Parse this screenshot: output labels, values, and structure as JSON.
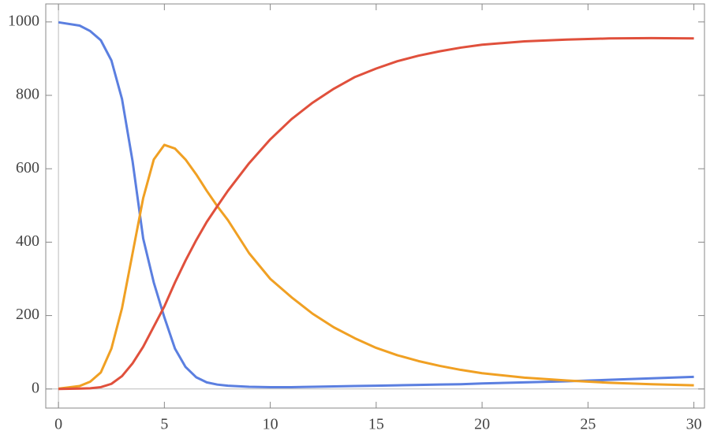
{
  "chart_data": {
    "type": "line",
    "x": [
      0,
      1,
      1.5,
      2,
      2.5,
      3,
      3.5,
      4,
      4.5,
      5,
      5.5,
      6,
      6.5,
      7,
      7.5,
      8,
      9,
      10,
      11,
      12,
      13,
      14,
      15,
      16,
      17,
      18,
      19,
      20,
      22,
      24,
      26,
      28,
      30
    ],
    "series": [
      {
        "color": "#5b7fe0",
        "values": [
          999,
          990,
          975,
          950,
          895,
          790,
          620,
          410,
          290,
          195,
          110,
          60,
          32,
          18,
          12,
          9,
          6,
          5,
          5,
          6,
          7,
          8,
          9,
          10,
          11,
          12,
          13,
          15,
          18,
          21,
          25,
          29,
          33
        ]
      },
      {
        "color": "#f0a023",
        "values": [
          1,
          8,
          20,
          45,
          110,
          220,
          370,
          520,
          625,
          665,
          655,
          625,
          585,
          540,
          498,
          460,
          370,
          300,
          250,
          205,
          168,
          138,
          112,
          92,
          76,
          63,
          52,
          43,
          31,
          23,
          17,
          13,
          10
        ]
      },
      {
        "color": "#e0503c",
        "values": [
          0,
          1,
          2,
          5,
          14,
          35,
          70,
          115,
          170,
          225,
          290,
          350,
          405,
          455,
          498,
          540,
          615,
          680,
          735,
          780,
          818,
          850,
          873,
          893,
          908,
          920,
          930,
          938,
          947,
          952,
          955,
          956,
          955
        ]
      }
    ],
    "xlim": [
      -0.6,
      30.5
    ],
    "ylim": [
      -52,
      1049
    ],
    "xticks": [
      0,
      5,
      10,
      15,
      20,
      25,
      30
    ],
    "yticks": [
      0,
      200,
      400,
      600,
      800,
      1000
    ]
  }
}
